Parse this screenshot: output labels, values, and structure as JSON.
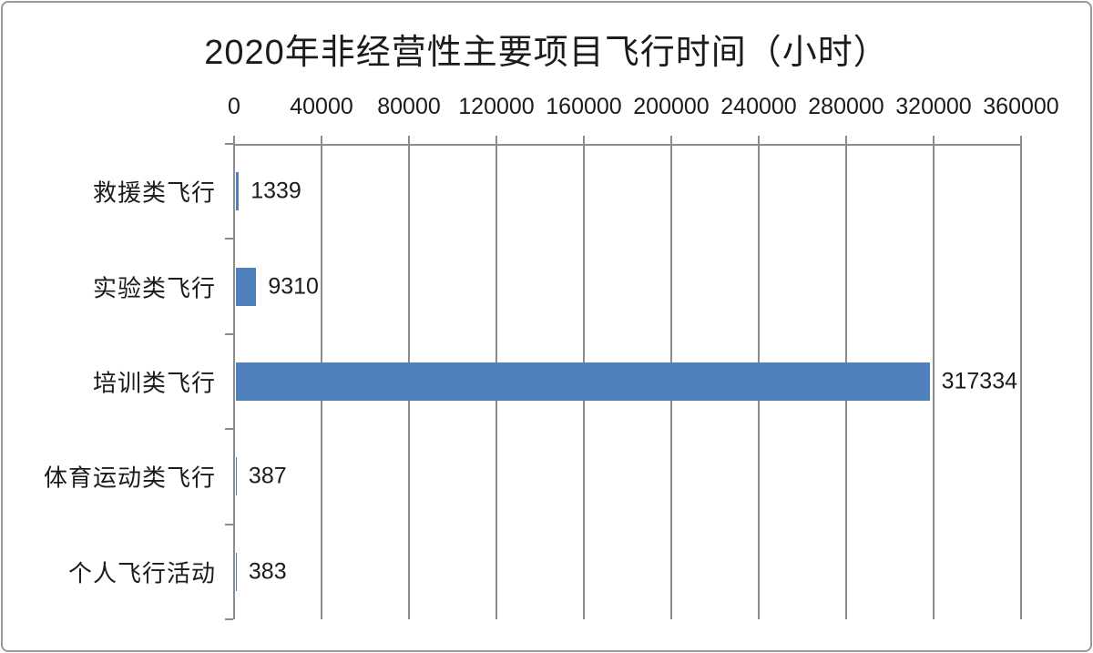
{
  "chart_data": {
    "type": "bar",
    "orientation": "horizontal",
    "title": "2020年非经营性主要项目飞行时间（小时）",
    "categories": [
      "救援类飞行",
      "实验类飞行",
      "培训类飞行",
      "体育运动类飞行",
      "个人飞行活动"
    ],
    "values": [
      1339,
      9310,
      317334,
      387,
      383
    ],
    "data_labels": [
      "1339",
      "9310",
      "317334",
      "387",
      "383"
    ],
    "xlabel": "",
    "ylabel": "",
    "xlim": [
      0,
      360000
    ],
    "x_ticks": [
      0,
      40000,
      80000,
      120000,
      160000,
      200000,
      240000,
      280000,
      320000,
      360000
    ],
    "x_tick_labels": [
      "0",
      "40000",
      "80000",
      "120000",
      "160000",
      "200000",
      "240000",
      "280000",
      "320000",
      "360000"
    ],
    "grid": "vertical-gridlines-on",
    "legend": "none",
    "bar_color": "#4F81BD",
    "axis_color": "#8C8C8C",
    "text_color": "#1B1B1B"
  }
}
